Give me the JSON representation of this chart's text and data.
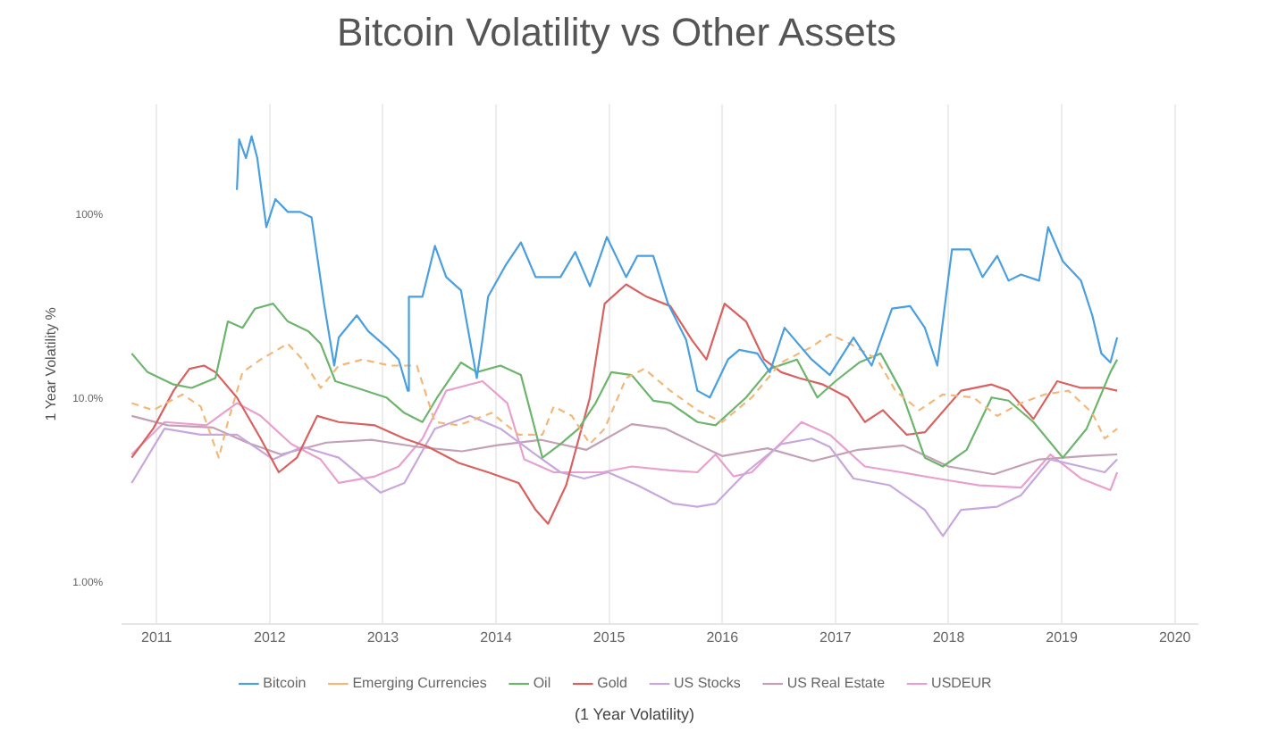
{
  "chart_data": {
    "type": "line",
    "title": "Bitcoin Volatility vs Other Assets",
    "xlabel": "(1 Year Volatility)",
    "ylabel": "1 Year Volatility %",
    "log": "y",
    "grid": "x",
    "legend": "bottom",
    "marker": "none",
    "line_style": "solid",
    "xlim": [
      2010.7,
      2020.2
    ],
    "xticks": [
      2011,
      2012,
      2013,
      2014,
      2015,
      2016,
      2017,
      2018,
      2019,
      2020
    ],
    "ylim": [
      0.6,
      400
    ],
    "yticks": [
      {
        "value": 1,
        "label": "1.00%"
      },
      {
        "value": 10,
        "label": "10.0%"
      },
      {
        "value": 100,
        "label": "100%"
      }
    ],
    "series": [
      {
        "name": "Bitcoin",
        "color": "#4a9fe0",
        "x": [
          2011.71,
          2011.73,
          2011.79,
          2011.84,
          2011.89,
          2011.97,
          2012.05,
          2012.16,
          2012.27,
          2012.37,
          2012.48,
          2012.57,
          2012.61,
          2012.77,
          2012.87,
          2013.03,
          2013.14,
          2013.22,
          2013.23,
          2013.35,
          2013.46,
          2013.56,
          2013.69,
          2013.83,
          2013.88,
          2013.93,
          2014.09,
          2014.22,
          2014.35,
          2014.57,
          2014.7,
          2014.83,
          2014.98,
          2015.15,
          2015.25,
          2015.39,
          2015.52,
          2015.68,
          2015.78,
          2015.89,
          2016.05,
          2016.15,
          2016.31,
          2016.42,
          2016.55,
          2016.79,
          2016.95,
          2017.16,
          2017.32,
          2017.5,
          2017.66,
          2017.79,
          2017.9,
          2018.03,
          2018.19,
          2018.3,
          2018.43,
          2018.53,
          2018.64,
          2018.8,
          2018.88,
          2019.01,
          2019.17,
          2019.27,
          2019.35,
          2019.43,
          2019.49
        ],
        "values": [
          137,
          258,
          204,
          268,
          204,
          86,
          122,
          104,
          104,
          97,
          33,
          15.2,
          21.6,
          28.5,
          23.4,
          19.2,
          16.4,
          11.1,
          36,
          36,
          68,
          46,
          39,
          13,
          21,
          36,
          54,
          71,
          46,
          46,
          63,
          41,
          76,
          46,
          60,
          60,
          33,
          21,
          11.1,
          10.2,
          16.4,
          18.5,
          17.7,
          14,
          24.4,
          16.4,
          13.5,
          21.6,
          15.2,
          31,
          32,
          24.4,
          15.2,
          65,
          65,
          46,
          60,
          44,
          47.5,
          44,
          86,
          56,
          44,
          28.5,
          17.7,
          15.8,
          21.6
        ]
      },
      {
        "name": "Emerging Currencies",
        "color": "#f3b77a",
        "line_style": "dashed",
        "x": [
          2010.78,
          2010.97,
          2011.23,
          2011.39,
          2011.55,
          2011.63,
          2011.76,
          2011.92,
          2012.16,
          2012.29,
          2012.45,
          2012.61,
          2012.82,
          2013.06,
          2013.3,
          2013.46,
          2013.67,
          2013.96,
          2014.2,
          2014.41,
          2014.51,
          2014.67,
          2014.83,
          2014.96,
          2015.15,
          2015.31,
          2015.54,
          2015.78,
          2016.0,
          2016.26,
          2016.52,
          2016.79,
          2016.95,
          2017.13,
          2017.37,
          2017.53,
          2017.74,
          2017.95,
          2018.22,
          2018.43,
          2018.64,
          2018.85,
          2019.06,
          2019.27,
          2019.38,
          2019.49
        ],
        "values": [
          9.5,
          8.7,
          10.6,
          9.1,
          4.8,
          7.5,
          14,
          16.4,
          20,
          16.4,
          11.5,
          15.2,
          16.4,
          15.2,
          15.2,
          7.5,
          7.2,
          8.4,
          6.4,
          6.4,
          9.1,
          8.1,
          5.7,
          6.9,
          13,
          14.6,
          11.1,
          8.7,
          7.5,
          10.2,
          15.8,
          19.2,
          22.5,
          20,
          16.4,
          11.1,
          8.7,
          10.6,
          10.2,
          8.1,
          9.5,
          10.6,
          11.1,
          8.4,
          6.1,
          6.9
        ]
      },
      {
        "name": "Oil",
        "color": "#6db56d",
        "x": [
          2010.78,
          2010.92,
          2011.15,
          2011.31,
          2011.52,
          2011.63,
          2011.76,
          2011.87,
          2012.03,
          2012.16,
          2012.34,
          2012.45,
          2012.58,
          2012.77,
          2013.03,
          2013.19,
          2013.35,
          2013.48,
          2013.69,
          2013.83,
          2014.04,
          2014.22,
          2014.41,
          2014.57,
          2014.73,
          2014.88,
          2015.02,
          2015.2,
          2015.39,
          2015.54,
          2015.78,
          2015.94,
          2016.21,
          2016.42,
          2016.66,
          2016.84,
          2017.0,
          2017.21,
          2017.4,
          2017.58,
          2017.79,
          2017.95,
          2018.16,
          2018.38,
          2018.53,
          2018.75,
          2019.01,
          2019.22,
          2019.43,
          2019.49
        ],
        "values": [
          17.7,
          14,
          12,
          11.5,
          13,
          26.4,
          24.4,
          31,
          33,
          26.4,
          23.4,
          20,
          12.5,
          11.5,
          10.2,
          8.4,
          7.5,
          10.2,
          15.8,
          14,
          15.2,
          13.5,
          4.8,
          5.7,
          6.9,
          9.5,
          14,
          13.5,
          9.8,
          9.5,
          7.5,
          7.2,
          10.2,
          14.6,
          16.4,
          10.2,
          12.5,
          15.8,
          17.7,
          11.1,
          4.8,
          4.3,
          5.3,
          10.2,
          9.8,
          7.5,
          4.8,
          6.9,
          14,
          16.4
        ]
      },
      {
        "name": "Gold",
        "color": "#d9615f",
        "x": [
          2010.78,
          2010.97,
          2011.15,
          2011.29,
          2011.42,
          2011.52,
          2011.71,
          2011.92,
          2012.08,
          2012.24,
          2012.42,
          2012.61,
          2012.93,
          2013.19,
          2013.4,
          2013.67,
          2013.93,
          2014.2,
          2014.35,
          2014.46,
          2014.62,
          2014.83,
          2014.96,
          2015.15,
          2015.33,
          2015.54,
          2015.73,
          2015.86,
          2016.02,
          2016.21,
          2016.37,
          2016.52,
          2016.68,
          2016.89,
          2017.11,
          2017.26,
          2017.42,
          2017.63,
          2017.79,
          2018.11,
          2018.38,
          2018.53,
          2018.75,
          2018.96,
          2019.17,
          2019.38,
          2019.49
        ],
        "values": [
          4.8,
          6.9,
          11.1,
          14.6,
          15.2,
          14,
          10.2,
          6.1,
          4,
          4.8,
          8.1,
          7.5,
          7.2,
          6.1,
          5.5,
          4.5,
          4,
          3.5,
          2.5,
          2.1,
          3.4,
          10.2,
          33,
          42,
          36,
          32,
          21,
          16.4,
          33,
          26.4,
          16.4,
          14,
          13,
          12,
          10.2,
          7.5,
          8.7,
          6.4,
          6.6,
          11.1,
          12,
          11.1,
          7.8,
          12.5,
          11.5,
          11.5,
          11.1
        ]
      },
      {
        "name": "US Stocks",
        "color": "#c8a8dc",
        "x": [
          2010.78,
          2011.07,
          2011.39,
          2011.71,
          2012.03,
          2012.29,
          2012.61,
          2012.98,
          2013.19,
          2013.46,
          2013.77,
          2014.04,
          2014.35,
          2014.57,
          2014.78,
          2014.99,
          2015.25,
          2015.57,
          2015.78,
          2015.94,
          2016.21,
          2016.52,
          2016.79,
          2016.95,
          2017.16,
          2017.48,
          2017.79,
          2017.95,
          2018.11,
          2018.43,
          2018.64,
          2018.9,
          2019.17,
          2019.38,
          2019.49
        ],
        "values": [
          3.5,
          6.9,
          6.4,
          6.4,
          4.7,
          5.5,
          4.8,
          3.1,
          3.5,
          6.9,
          8.1,
          6.9,
          5,
          4,
          3.7,
          4,
          3.4,
          2.7,
          2.6,
          2.7,
          4,
          5.7,
          6.1,
          5.5,
          3.7,
          3.4,
          2.5,
          1.8,
          2.5,
          2.6,
          3,
          4.7,
          4.3,
          4,
          4.7
        ]
      },
      {
        "name": "US Real Estate",
        "color": "#c4a0b4",
        "x": [
          2010.78,
          2011.1,
          2011.5,
          2011.8,
          2012.1,
          2012.5,
          2012.9,
          2013.3,
          2013.7,
          2014.0,
          2014.4,
          2014.8,
          2015.2,
          2015.5,
          2015.8,
          2016.0,
          2016.4,
          2016.8,
          2017.2,
          2017.6,
          2018.0,
          2018.4,
          2018.8,
          2019.2,
          2019.49
        ],
        "values": [
          8.1,
          7.2,
          7,
          5.8,
          5,
          5.8,
          6,
          5.5,
          5.2,
          5.6,
          6,
          5.3,
          7.3,
          6.9,
          5.6,
          4.9,
          5.4,
          4.6,
          5.3,
          5.6,
          4.3,
          3.9,
          4.7,
          4.9,
          5
        ]
      },
      {
        "name": "USDEUR",
        "color": "#e9a0cf",
        "x": [
          2010.78,
          2011.07,
          2011.44,
          2011.71,
          2011.92,
          2012.19,
          2012.45,
          2012.61,
          2012.93,
          2013.14,
          2013.35,
          2013.56,
          2013.88,
          2014.1,
          2014.25,
          2014.51,
          2014.94,
          2015.2,
          2015.54,
          2015.78,
          2015.94,
          2016.1,
          2016.26,
          2016.7,
          2016.95,
          2017.26,
          2017.58,
          2017.9,
          2018.27,
          2018.64,
          2018.9,
          2019.17,
          2019.43,
          2019.49
        ],
        "values": [
          5,
          7.5,
          7.2,
          9.5,
          8.1,
          5.7,
          4.7,
          3.5,
          3.8,
          4.3,
          6.1,
          11.1,
          12.5,
          9.5,
          4.7,
          4,
          4,
          4.3,
          4.1,
          4,
          5,
          3.8,
          4,
          7.5,
          6.4,
          4.3,
          4,
          3.7,
          3.4,
          3.3,
          5,
          3.7,
          3.2,
          4
        ]
      }
    ]
  }
}
